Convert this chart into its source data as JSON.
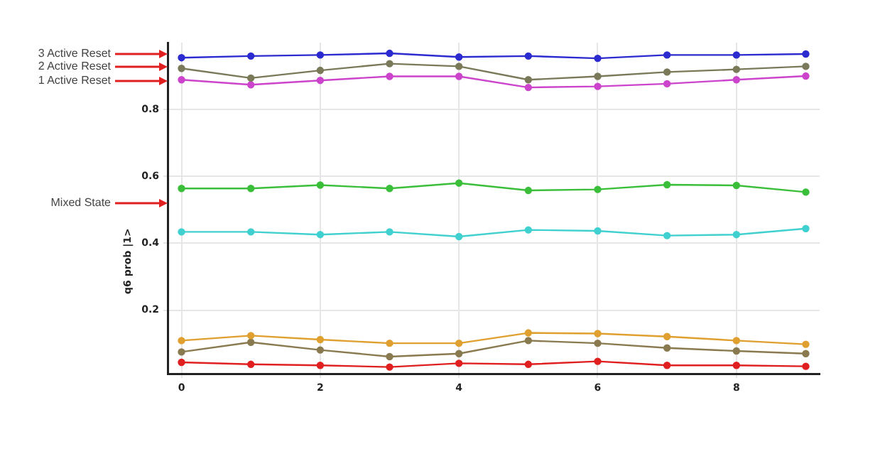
{
  "chart_data": {
    "type": "line",
    "ylabel": "q6 prob |1>",
    "x": [
      0,
      1,
      2,
      3,
      4,
      5,
      6,
      7,
      8,
      9
    ],
    "xlim": [
      -0.2,
      9.2
    ],
    "xticks": [
      0,
      2,
      4,
      6,
      8
    ],
    "ylim": [
      0.01,
      1.0
    ],
    "yticks": [
      0.2,
      0.4,
      0.6,
      0.8
    ],
    "grid": true,
    "legend": false,
    "marker": "circle",
    "line_style": "solid",
    "series": [
      {
        "color": "#2b2bd0",
        "values": [
          0.955,
          0.96,
          0.963,
          0.968,
          0.957,
          0.96,
          0.953,
          0.963,
          0.963,
          0.966
        ]
      },
      {
        "color": "#7a7a5a",
        "values": [
          0.923,
          0.894,
          0.917,
          0.937,
          0.929,
          0.889,
          0.899,
          0.912,
          0.92,
          0.929
        ]
      },
      {
        "color": "#cc44cc",
        "values": [
          0.889,
          0.874,
          0.887,
          0.899,
          0.899,
          0.866,
          0.869,
          0.877,
          0.889,
          0.9
        ]
      },
      {
        "color": "#3bbf3b",
        "values": [
          0.564,
          0.564,
          0.574,
          0.564,
          0.58,
          0.558,
          0.561,
          0.575,
          0.573,
          0.553
        ]
      },
      {
        "color": "#40d0d0",
        "values": [
          0.434,
          0.434,
          0.426,
          0.434,
          0.42,
          0.44,
          0.437,
          0.423,
          0.426,
          0.444
        ]
      },
      {
        "color": "#e0a030",
        "values": [
          0.109,
          0.124,
          0.112,
          0.101,
          0.101,
          0.132,
          0.13,
          0.121,
          0.109,
          0.098
        ]
      },
      {
        "color": "#8a7a50",
        "values": [
          0.075,
          0.104,
          0.081,
          0.061,
          0.07,
          0.109,
          0.101,
          0.087,
          0.078,
          0.07
        ]
      },
      {
        "color": "#e02020",
        "values": [
          0.044,
          0.038,
          0.035,
          0.03,
          0.041,
          0.038,
          0.047,
          0.035,
          0.035,
          0.032
        ]
      }
    ],
    "annotations": [
      "3 Active Reset",
      "2 Active Reset",
      "1 Active Reset",
      "Mixed State"
    ]
  }
}
